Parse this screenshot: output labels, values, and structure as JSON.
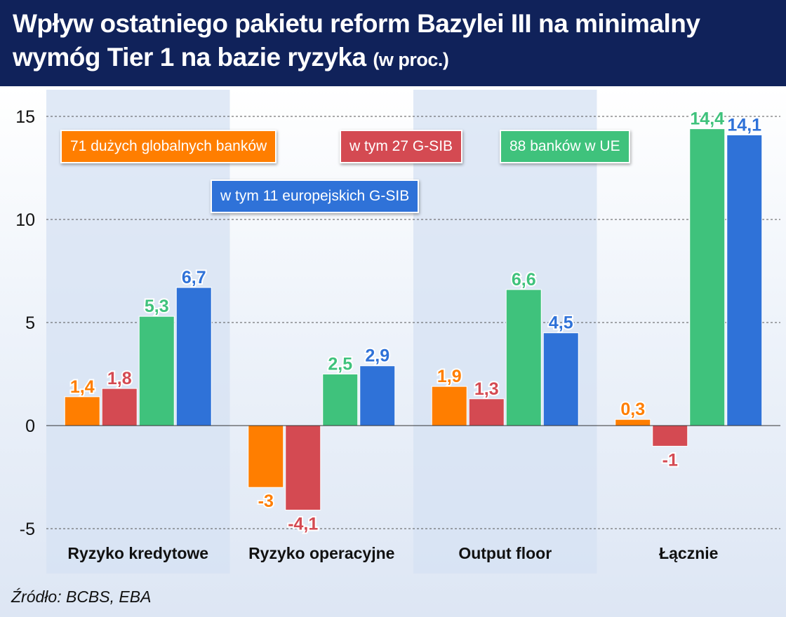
{
  "title": {
    "main": "Wpływ ostatniego pakietu reform Bazylei III na minimalny wymóg Tier 1 na bazie ryzyka",
    "unit": "(w proc.)"
  },
  "source": "Źródło: BCBS, EBA",
  "chart_data": {
    "type": "bar",
    "categories": [
      "Ryzyko kredytowe",
      "Ryzyko operacyjne",
      "Output floor",
      "Łącznie"
    ],
    "series": [
      {
        "name": "71 dużych globalnych banków",
        "color": "#ff7e00",
        "values": [
          1.4,
          -3,
          1.9,
          0.3
        ],
        "labels": [
          "1,4",
          "-3",
          "1,9",
          "0,3"
        ]
      },
      {
        "name": "w tym 27 G-SIB",
        "color": "#d44a52",
        "values": [
          1.8,
          -4.1,
          1.3,
          -1
        ],
        "labels": [
          "1,8",
          "-4,1",
          "1,3",
          "-1"
        ]
      },
      {
        "name": "88 banków w UE",
        "color": "#3fc27c",
        "values": [
          5.3,
          2.5,
          6.6,
          14.4
        ],
        "labels": [
          "5,3",
          "2,5",
          "6,6",
          "14,4"
        ]
      },
      {
        "name": "w tym 11 europejskich G-SIB",
        "color": "#2f72d8",
        "values": [
          6.7,
          2.9,
          4.5,
          14.1
        ],
        "labels": [
          "6,7",
          "2,9",
          "4,5",
          "14,1"
        ]
      }
    ],
    "yticks": [
      15,
      10,
      5,
      0,
      -5
    ],
    "ytick_labels": [
      "15",
      "10",
      "5",
      "0",
      "-5"
    ],
    "ylim": [
      -6.3,
      15.5
    ],
    "grid": true,
    "legend": "top-left"
  }
}
